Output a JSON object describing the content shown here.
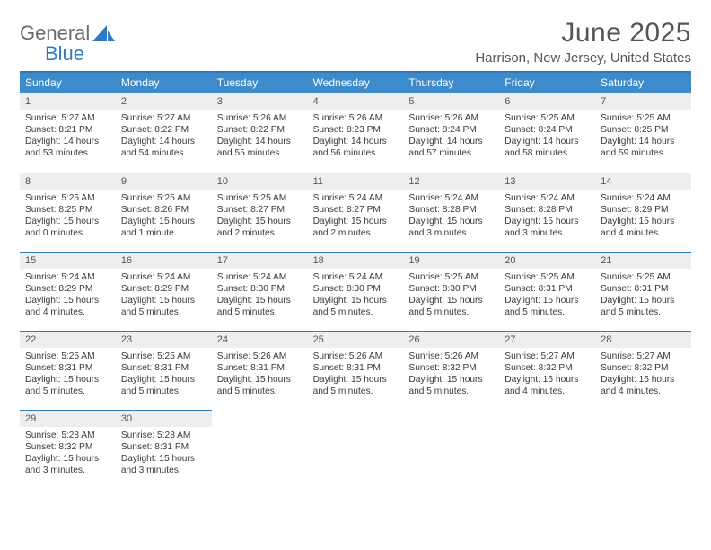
{
  "brand": {
    "word1": "General",
    "word2": "Blue"
  },
  "header": {
    "title": "June 2025",
    "location": "Harrison, New Jersey, United States"
  },
  "colors": {
    "accent": "#3d8bca",
    "accent_border": "#2f7bbf",
    "daynum_bg": "#eeeeee",
    "text": "#3a3a3a",
    "muted": "#555555",
    "bg": "#ffffff"
  },
  "dow": [
    "Sunday",
    "Monday",
    "Tuesday",
    "Wednesday",
    "Thursday",
    "Friday",
    "Saturday"
  ],
  "days": [
    {
      "n": "1",
      "sr": "5:27 AM",
      "ss": "8:21 PM",
      "dl": "14 hours and 53 minutes."
    },
    {
      "n": "2",
      "sr": "5:27 AM",
      "ss": "8:22 PM",
      "dl": "14 hours and 54 minutes."
    },
    {
      "n": "3",
      "sr": "5:26 AM",
      "ss": "8:22 PM",
      "dl": "14 hours and 55 minutes."
    },
    {
      "n": "4",
      "sr": "5:26 AM",
      "ss": "8:23 PM",
      "dl": "14 hours and 56 minutes."
    },
    {
      "n": "5",
      "sr": "5:26 AM",
      "ss": "8:24 PM",
      "dl": "14 hours and 57 minutes."
    },
    {
      "n": "6",
      "sr": "5:25 AM",
      "ss": "8:24 PM",
      "dl": "14 hours and 58 minutes."
    },
    {
      "n": "7",
      "sr": "5:25 AM",
      "ss": "8:25 PM",
      "dl": "14 hours and 59 minutes."
    },
    {
      "n": "8",
      "sr": "5:25 AM",
      "ss": "8:25 PM",
      "dl": "15 hours and 0 minutes."
    },
    {
      "n": "9",
      "sr": "5:25 AM",
      "ss": "8:26 PM",
      "dl": "15 hours and 1 minute."
    },
    {
      "n": "10",
      "sr": "5:25 AM",
      "ss": "8:27 PM",
      "dl": "15 hours and 2 minutes."
    },
    {
      "n": "11",
      "sr": "5:24 AM",
      "ss": "8:27 PM",
      "dl": "15 hours and 2 minutes."
    },
    {
      "n": "12",
      "sr": "5:24 AM",
      "ss": "8:28 PM",
      "dl": "15 hours and 3 minutes."
    },
    {
      "n": "13",
      "sr": "5:24 AM",
      "ss": "8:28 PM",
      "dl": "15 hours and 3 minutes."
    },
    {
      "n": "14",
      "sr": "5:24 AM",
      "ss": "8:29 PM",
      "dl": "15 hours and 4 minutes."
    },
    {
      "n": "15",
      "sr": "5:24 AM",
      "ss": "8:29 PM",
      "dl": "15 hours and 4 minutes."
    },
    {
      "n": "16",
      "sr": "5:24 AM",
      "ss": "8:29 PM",
      "dl": "15 hours and 5 minutes."
    },
    {
      "n": "17",
      "sr": "5:24 AM",
      "ss": "8:30 PM",
      "dl": "15 hours and 5 minutes."
    },
    {
      "n": "18",
      "sr": "5:24 AM",
      "ss": "8:30 PM",
      "dl": "15 hours and 5 minutes."
    },
    {
      "n": "19",
      "sr": "5:25 AM",
      "ss": "8:30 PM",
      "dl": "15 hours and 5 minutes."
    },
    {
      "n": "20",
      "sr": "5:25 AM",
      "ss": "8:31 PM",
      "dl": "15 hours and 5 minutes."
    },
    {
      "n": "21",
      "sr": "5:25 AM",
      "ss": "8:31 PM",
      "dl": "15 hours and 5 minutes."
    },
    {
      "n": "22",
      "sr": "5:25 AM",
      "ss": "8:31 PM",
      "dl": "15 hours and 5 minutes."
    },
    {
      "n": "23",
      "sr": "5:25 AM",
      "ss": "8:31 PM",
      "dl": "15 hours and 5 minutes."
    },
    {
      "n": "24",
      "sr": "5:26 AM",
      "ss": "8:31 PM",
      "dl": "15 hours and 5 minutes."
    },
    {
      "n": "25",
      "sr": "5:26 AM",
      "ss": "8:31 PM",
      "dl": "15 hours and 5 minutes."
    },
    {
      "n": "26",
      "sr": "5:26 AM",
      "ss": "8:32 PM",
      "dl": "15 hours and 5 minutes."
    },
    {
      "n": "27",
      "sr": "5:27 AM",
      "ss": "8:32 PM",
      "dl": "15 hours and 4 minutes."
    },
    {
      "n": "28",
      "sr": "5:27 AM",
      "ss": "8:32 PM",
      "dl": "15 hours and 4 minutes."
    },
    {
      "n": "29",
      "sr": "5:28 AM",
      "ss": "8:32 PM",
      "dl": "15 hours and 3 minutes."
    },
    {
      "n": "30",
      "sr": "5:28 AM",
      "ss": "8:31 PM",
      "dl": "15 hours and 3 minutes."
    }
  ],
  "labels": {
    "sunrise": "Sunrise:",
    "sunset": "Sunset:",
    "daylight": "Daylight:"
  }
}
